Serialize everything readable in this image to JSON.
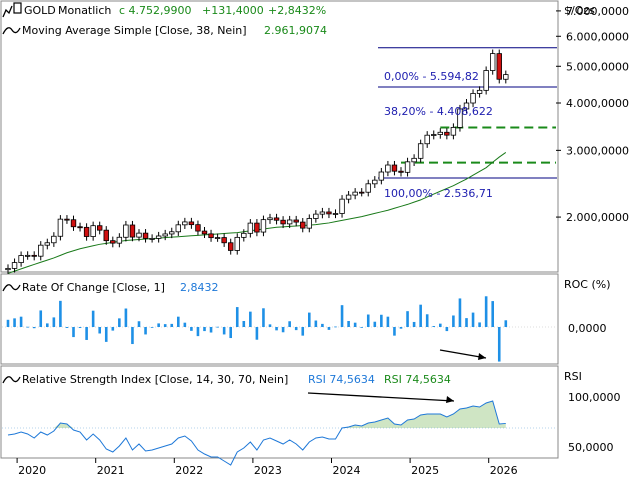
{
  "colors": {
    "up": "#ffffff",
    "down": "#d01010",
    "candle_stroke": "#000000",
    "ma": "#1a7a1a",
    "roc": "#1e90e6",
    "rsi": "#1e78d8",
    "rsi_fill": "#cfe5c4",
    "fib": "#000080",
    "fib_text": "#2020b0",
    "dash": "#1a8a1a",
    "legend_green": "#1a8a1a",
    "legend_blue": "#1e78d8"
  },
  "header": {
    "symbol": "GOLD",
    "interval": "Monatlich",
    "last": "c 4.752,9900",
    "change": "+131,4000",
    "change_pct": "+2,8432%",
    "ma_label": "Moving Average Simple [Close, 38, Nein]",
    "ma_value": "2.961,9074"
  },
  "price_panel": {
    "unit": "$/Ozs",
    "ticks": [
      "7.000,0000",
      "6.000,0000",
      "5.000,0000",
      "4.000,0000",
      "3.000,0000",
      "2.000,0000"
    ],
    "fib_labels": [
      "0,00% - 5.594,82",
      "38,20% - 4.408,622",
      "100,00% - 2.536,71"
    ]
  },
  "roc_panel": {
    "label": "Rate Of Change [Close, 1]",
    "value": "2,8432",
    "unit": "ROC (%)",
    "tick": "0,0000"
  },
  "rsi_panel": {
    "label": "Relative Strength Index [Close, 14, 30, 70, Nein]",
    "value1": "RSI 74,5634",
    "value2": "RSI 74,5634",
    "unit": "RSI",
    "ticks": [
      "100,0000",
      "50,0000"
    ]
  },
  "time_axis": {
    "labels": [
      "2020",
      "2021",
      "2022",
      "2023",
      "2024",
      "2025",
      "2026"
    ]
  },
  "chart_data": {
    "type": "candlestick",
    "x_start": "2019-11",
    "x_end": "2026-03",
    "y_scale": "log",
    "ylim": [
      1450,
      7300
    ],
    "close": [
      1464,
      1517,
      1583,
      1585,
      1577,
      1686,
      1711,
      1780,
      1975,
      1968,
      1886,
      1879,
      1777,
      1898,
      1847,
      1733,
      1707,
      1769,
      1906,
      1771,
      1814,
      1757,
      1757,
      1783,
      1805,
      1829,
      1908,
      1942,
      1910,
      1837,
      1806,
      1765,
      1766,
      1711,
      1633,
      1768,
      1812,
      1928,
      1826,
      1969,
      1990,
      1962,
      1919,
      1965,
      1940,
      1870,
      1983,
      2036,
      2063,
      2039,
      2044,
      2230,
      2286,
      2327,
      2326,
      2448,
      2503,
      2630,
      2744,
      2643,
      2625,
      2798,
      2858,
      3123,
      3289,
      3303,
      3348,
      3290,
      3448,
      3858,
      4000,
      4239,
      4320,
      4873,
      5400,
      4621,
      4753
    ],
    "open": [
      1453,
      1464,
      1517,
      1583,
      1585,
      1577,
      1686,
      1711,
      1780,
      1975,
      1968,
      1886,
      1879,
      1777,
      1898,
      1847,
      1733,
      1707,
      1769,
      1906,
      1771,
      1814,
      1757,
      1757,
      1783,
      1805,
      1829,
      1908,
      1942,
      1910,
      1837,
      1806,
      1765,
      1766,
      1711,
      1633,
      1768,
      1812,
      1928,
      1826,
      1969,
      1990,
      1962,
      1919,
      1965,
      1940,
      1870,
      1983,
      2036,
      2063,
      2039,
      2044,
      2230,
      2286,
      2327,
      2326,
      2448,
      2503,
      2630,
      2744,
      2643,
      2625,
      2798,
      2858,
      3123,
      3289,
      3303,
      3348,
      3290,
      3448,
      3858,
      4000,
      4239,
      4320,
      4873,
      5400,
      4621
    ],
    "ma": [
      1420,
      1440,
      1460,
      1480,
      1500,
      1520,
      1540,
      1560,
      1585,
      1610,
      1630,
      1650,
      1665,
      1680,
      1695,
      1705,
      1715,
      1725,
      1735,
      1740,
      1745,
      1750,
      1755,
      1760,
      1765,
      1770,
      1775,
      1780,
      1785,
      1790,
      1795,
      1800,
      1805,
      1810,
      1815,
      1820,
      1830,
      1840,
      1850,
      1860,
      1870,
      1880,
      1885,
      1890,
      1895,
      1900,
      1905,
      1910,
      1920,
      1930,
      1945,
      1960,
      1975,
      1990,
      2005,
      2025,
      2045,
      2065,
      2085,
      2110,
      2135,
      2160,
      2190,
      2220,
      2260,
      2300,
      2340,
      2380,
      2420,
      2470,
      2520,
      2580,
      2640,
      2700,
      2790,
      2880,
      2962
    ],
    "roc": [
      3.0,
      3.6,
      4.3,
      0.1,
      -0.5,
      6.9,
      1.5,
      4.0,
      10.9,
      -0.4,
      -4.2,
      -0.4,
      -5.4,
      6.8,
      -2.7,
      -6.2,
      -1.5,
      3.6,
      7.7,
      -7.1,
      2.4,
      -3.1,
      0.0,
      1.5,
      1.2,
      1.3,
      4.3,
      1.8,
      -1.6,
      -3.8,
      -1.7,
      -2.3,
      0.1,
      -3.1,
      -4.6,
      8.3,
      2.5,
      6.4,
      -5.3,
      7.8,
      1.1,
      -1.4,
      -2.2,
      2.4,
      -1.3,
      -3.6,
      6.0,
      2.7,
      1.3,
      -1.2,
      0.2,
      9.1,
      2.5,
      1.8,
      -0.0,
      5.2,
      2.2,
      5.1,
      4.3,
      -3.6,
      -0.7,
      6.6,
      2.1,
      9.3,
      5.3,
      0.4,
      1.4,
      -1.7,
      4.8,
      11.9,
      3.7,
      6.0,
      1.9,
      12.8,
      10.8,
      -14.4,
      2.8
    ],
    "rsi": [
      63,
      64,
      66,
      64,
      60,
      66,
      63,
      67,
      75,
      74,
      68,
      66,
      58,
      64,
      58,
      49,
      46,
      52,
      60,
      48,
      54,
      47,
      48,
      50,
      52,
      54,
      60,
      62,
      57,
      48,
      44,
      41,
      41,
      37,
      33,
      46,
      50,
      56,
      48,
      58,
      60,
      57,
      54,
      58,
      54,
      48,
      56,
      60,
      61,
      59,
      59,
      70,
      71,
      73,
      72,
      75,
      76,
      78,
      80,
      74,
      73,
      78,
      79,
      83,
      84,
      84,
      84,
      81,
      84,
      89,
      90,
      92,
      91,
      95,
      97,
      74,
      74.5634
    ],
    "rsi_levels": [
      30,
      70
    ],
    "fib": [
      {
        "pct": "0,00%",
        "value": 5594.82
      },
      {
        "pct": "38,20%",
        "value": 4408.622
      },
      {
        "pct": "100,00%",
        "value": 2536.71
      }
    ],
    "support_levels": [
      3448,
      2785
    ]
  }
}
